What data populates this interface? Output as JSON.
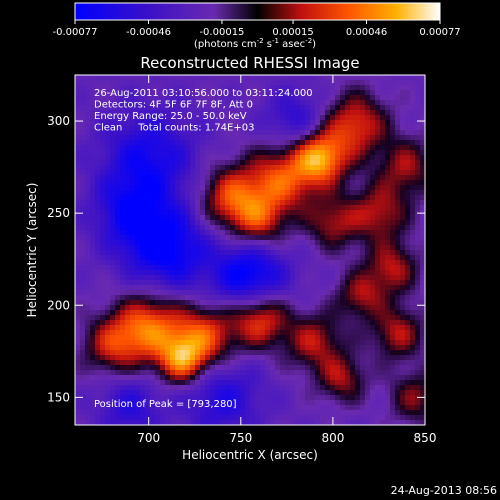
{
  "chart_data": {
    "type": "heatmap",
    "title": "Reconstructed RHESSI Image",
    "xlabel": "Heliocentric X (arcsec)",
    "ylabel": "Heliocentric Y (arcsec)",
    "xlim": [
      660,
      850
    ],
    "ylim": [
      135,
      325
    ],
    "x_ticks": [
      700,
      750,
      800,
      850
    ],
    "y_ticks": [
      150,
      200,
      250,
      300
    ],
    "colorbar": {
      "range": [
        -0.00077,
        0.00077
      ],
      "tick_values": [
        -0.00077,
        -0.00046,
        -0.00015,
        0.00015,
        0.00046,
        0.00077
      ],
      "tick_labels": [
        "-0.00077",
        "-0.00046",
        "-0.00015",
        "0.00015",
        "0.00046",
        "0.00077"
      ],
      "unit_label": "(photons cm",
      "unit_exp1": "-2",
      "unit_mid": " s",
      "unit_exp2": "-1",
      "unit_mid2": " asec",
      "unit_exp3": "-2",
      "unit_close": ")"
    },
    "info_lines": [
      "26-Aug-2011 03:10:56.000 to 03:11:24.000",
      "Detectors: 4F 5F 6F 7F 8F, Att 0",
      "Energy Range: 25.0 - 50.0 keV",
      "Clean     Total counts: 1.74E+03"
    ],
    "peak_label": "Position of Peak = [793,280]",
    "peak_position": [
      793,
      280
    ],
    "intensity_blobs": [
      {
        "x": 793,
        "y": 280,
        "amp": 1.0,
        "sigma": 10
      },
      {
        "x": 772,
        "y": 268,
        "amp": 0.75,
        "sigma": 13
      },
      {
        "x": 812,
        "y": 298,
        "amp": 0.7,
        "sigma": 12
      },
      {
        "x": 745,
        "y": 258,
        "amp": 0.75,
        "sigma": 12
      },
      {
        "x": 760,
        "y": 245,
        "amp": 0.55,
        "sigma": 10
      },
      {
        "x": 800,
        "y": 245,
        "amp": 0.5,
        "sigma": 10
      },
      {
        "x": 825,
        "y": 250,
        "amp": 0.55,
        "sigma": 11
      },
      {
        "x": 840,
        "y": 275,
        "amp": 0.5,
        "sigma": 11
      },
      {
        "x": 832,
        "y": 220,
        "amp": 0.55,
        "sigma": 10
      },
      {
        "x": 815,
        "y": 205,
        "amp": 0.5,
        "sigma": 9
      },
      {
        "x": 700,
        "y": 188,
        "amp": 0.85,
        "sigma": 13
      },
      {
        "x": 680,
        "y": 178,
        "amp": 0.55,
        "sigma": 11
      },
      {
        "x": 730,
        "y": 183,
        "amp": 0.75,
        "sigma": 12
      },
      {
        "x": 760,
        "y": 193,
        "amp": 0.8,
        "sigma": 11
      },
      {
        "x": 718,
        "y": 170,
        "amp": 0.8,
        "sigma": 9
      },
      {
        "x": 790,
        "y": 180,
        "amp": 0.55,
        "sigma": 11
      },
      {
        "x": 805,
        "y": 160,
        "amp": 0.5,
        "sigma": 9
      },
      {
        "x": 835,
        "y": 185,
        "amp": 0.55,
        "sigma": 10
      },
      {
        "x": 845,
        "y": 150,
        "amp": 0.45,
        "sigma": 10
      },
      {
        "x": 710,
        "y": 230,
        "amp": -0.7,
        "sigma": 16
      },
      {
        "x": 755,
        "y": 215,
        "amp": -0.75,
        "sigma": 14
      },
      {
        "x": 700,
        "y": 280,
        "amp": -0.55,
        "sigma": 18
      },
      {
        "x": 690,
        "y": 250,
        "amp": -0.5,
        "sigma": 14
      },
      {
        "x": 780,
        "y": 300,
        "amp": -0.4,
        "sigma": 12
      },
      {
        "x": 740,
        "y": 150,
        "amp": -0.45,
        "sigma": 15
      },
      {
        "x": 690,
        "y": 145,
        "amp": -0.4,
        "sigma": 12
      }
    ]
  },
  "footer": {
    "timestamp": "24-Aug-2013 08:56"
  }
}
